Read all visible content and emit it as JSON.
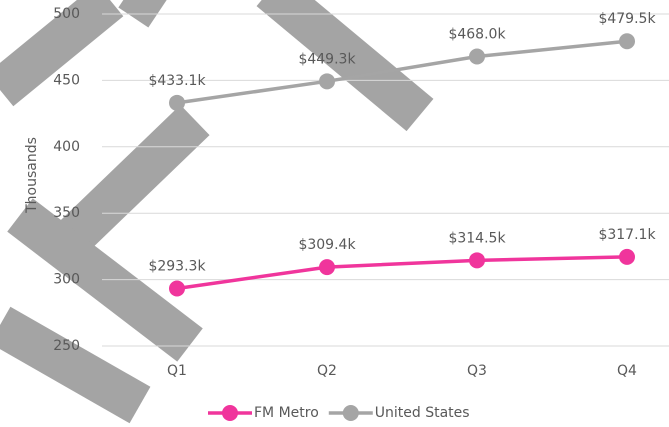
{
  "chart_data": {
    "type": "line",
    "y_label": "Thousands",
    "categories": [
      "Q1",
      "Q2",
      "Q3",
      "Q4"
    ],
    "series": [
      {
        "name": "FM Metro",
        "color": "#f0359c",
        "values": [
          293.3,
          309.4,
          314.5,
          317.1
        ],
        "value_labels": [
          "$293.3k",
          "$309.4k",
          "$314.5k",
          "$317.1k"
        ]
      },
      {
        "name": "United States",
        "color": "#a5a5a5",
        "values": [
          433.1,
          449.3,
          468.0,
          479.5
        ],
        "value_labels": [
          "$433.1k",
          "$449.3k",
          "$468.0k",
          "$479.5k"
        ]
      }
    ],
    "ylim": [
      250,
      500
    ],
    "yticks": [
      250,
      300,
      350,
      400,
      450,
      500
    ],
    "grid": true,
    "legend": "bottom"
  }
}
